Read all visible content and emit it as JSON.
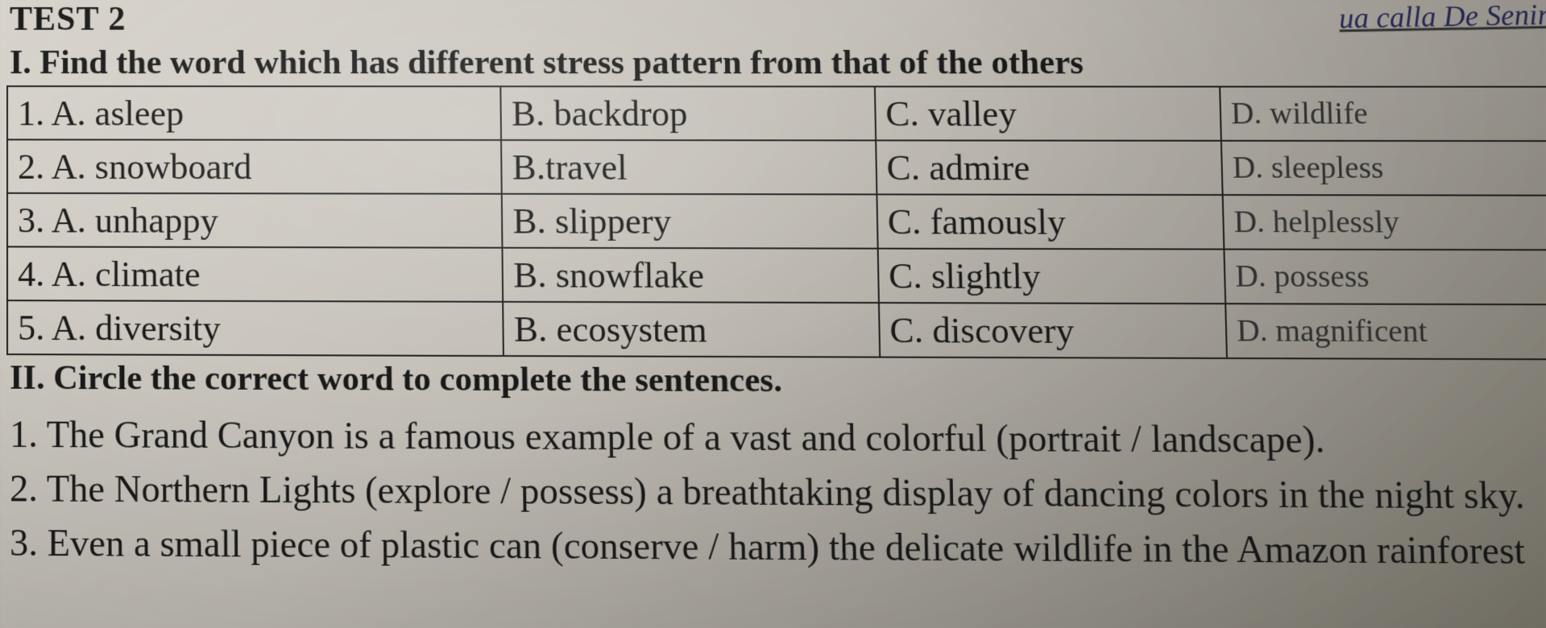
{
  "handwriting_text": "ua calla De Senir",
  "test_label": "TEST 2",
  "section1": {
    "heading": "I. Find the word which has different stress pattern from that of the others",
    "rows": [
      {
        "a": "1. A. asleep",
        "b": "B. backdrop",
        "c": "C. valley",
        "d": "D. wildlife"
      },
      {
        "a": "2. A. snowboard",
        "b": "B.travel",
        "c": "C. admire",
        "d": "D. sleepless"
      },
      {
        "a": "3. A. unhappy",
        "b": "B. slippery",
        "c": "C. famously",
        "d": "D. helplessly"
      },
      {
        "a": "4. A. climate",
        "b": "B. snowflake",
        "c": "C. slightly",
        "d": "D. possess"
      },
      {
        "a": "5. A. diversity",
        "b": "B. ecosystem",
        "c": "C. discovery",
        "d": "D. magnificent"
      }
    ]
  },
  "section2": {
    "heading": "II. Circle the correct word to complete the sentences.",
    "sentences": [
      "1. The Grand Canyon is a famous example of a vast and colorful (portrait / landscape).",
      "2. The Northern Lights (explore / possess) a breathtaking display of dancing colors in the night sky.",
      "3. Even a small piece of plastic can (conserve / harm) the delicate wildlife in the Amazon rainforest"
    ]
  },
  "style": {
    "font_family": "Times New Roman",
    "base_fontsize_pt": 32,
    "table_border_color": "#222222",
    "text_color": "#1a1a1a",
    "background_gradient": [
      "#d8d4cc",
      "#888478"
    ]
  }
}
